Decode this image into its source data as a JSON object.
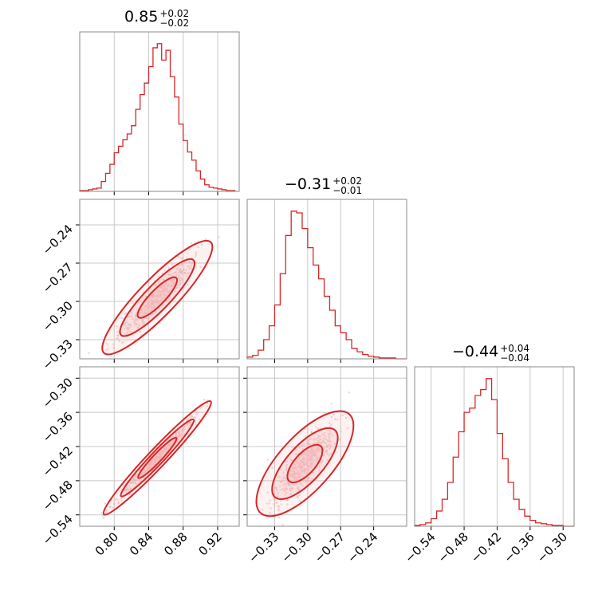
{
  "colors": {
    "accent": "#d62728",
    "fill": "#f3b7b8",
    "scatter": "#f4a9aa"
  },
  "titles": [
    {
      "main": "0.85",
      "plus": "+0.02",
      "minus": "−0.02"
    },
    {
      "main": "−0.31",
      "plus": "+0.02",
      "minus": "−0.01"
    },
    {
      "main": "−0.44",
      "plus": "+0.04",
      "minus": "−0.04"
    }
  ],
  "chart_data": [
    {
      "type": "histogram",
      "panel": "marginal-1",
      "xlim": [
        0.76,
        0.945
      ],
      "bins": [
        0.76,
        0.765,
        0.77,
        0.775,
        0.78,
        0.785,
        0.79,
        0.795,
        0.8,
        0.805,
        0.81,
        0.815,
        0.82,
        0.825,
        0.83,
        0.835,
        0.84,
        0.845,
        0.85,
        0.855,
        0.86,
        0.865,
        0.87,
        0.875,
        0.88,
        0.885,
        0.89,
        0.895,
        0.9,
        0.905,
        0.91,
        0.915,
        0.92,
        0.925,
        0.93,
        0.935,
        0.94
      ],
      "counts": [
        1,
        1,
        2,
        3,
        4,
        12,
        22,
        33,
        47,
        55,
        63,
        70,
        80,
        100,
        118,
        132,
        152,
        175,
        180,
        160,
        172,
        140,
        115,
        82,
        62,
        48,
        38,
        25,
        15,
        8,
        5,
        4,
        3,
        2,
        1,
        1
      ],
      "xticks": [
        0.8,
        0.84,
        0.88,
        0.92
      ]
    },
    {
      "type": "histogram",
      "panel": "marginal-2",
      "xlim": [
        -0.355,
        -0.21
      ],
      "bins": [
        -0.355,
        -0.35,
        -0.345,
        -0.34,
        -0.335,
        -0.33,
        -0.325,
        -0.32,
        -0.315,
        -0.31,
        -0.305,
        -0.3,
        -0.295,
        -0.29,
        -0.285,
        -0.28,
        -0.275,
        -0.27,
        -0.265,
        -0.26,
        -0.255,
        -0.25,
        -0.245,
        -0.24,
        -0.235,
        -0.23,
        -0.225,
        -0.22,
        -0.215,
        -0.21
      ],
      "counts": [
        2,
        4,
        10,
        22,
        38,
        62,
        98,
        142,
        170,
        168,
        150,
        128,
        108,
        92,
        72,
        56,
        38,
        30,
        22,
        12,
        8,
        5,
        3,
        2,
        1,
        1,
        1,
        0,
        0
      ],
      "xticks": [
        -0.33,
        -0.3,
        -0.27,
        -0.24
      ]
    },
    {
      "type": "histogram",
      "panel": "marginal-3",
      "xlim": [
        -0.57,
        -0.28
      ],
      "bins": [
        -0.57,
        -0.56,
        -0.55,
        -0.54,
        -0.53,
        -0.52,
        -0.51,
        -0.5,
        -0.49,
        -0.48,
        -0.47,
        -0.46,
        -0.45,
        -0.44,
        -0.43,
        -0.42,
        -0.41,
        -0.4,
        -0.39,
        -0.38,
        -0.37,
        -0.36,
        -0.35,
        -0.34,
        -0.33,
        -0.32,
        -0.31,
        -0.3,
        -0.29,
        -0.28
      ],
      "counts": [
        1,
        2,
        4,
        9,
        18,
        32,
        52,
        82,
        112,
        135,
        140,
        155,
        162,
        175,
        150,
        110,
        80,
        52,
        32,
        20,
        12,
        7,
        4,
        3,
        2,
        1,
        1,
        0,
        0
      ],
      "xticks": [
        -0.54,
        -0.48,
        -0.42,
        -0.36,
        -0.3
      ]
    },
    {
      "type": "scatter",
      "panel": "joint-2-1",
      "xlim": [
        0.76,
        0.945
      ],
      "ylim": [
        -0.345,
        -0.22
      ],
      "xticks": [
        0.8,
        0.84,
        0.88,
        0.92
      ],
      "yticks": [
        -0.24,
        -0.27,
        -0.3,
        -0.33
      ],
      "ytick_labels": [
        "−0.24",
        "−0.27",
        "−0.30",
        "−0.33"
      ],
      "trend": {
        "x": [
          0.8,
          0.9
        ],
        "y": [
          -0.332,
          -0.262
        ],
        "spread": 0.006
      }
    },
    {
      "type": "scatter",
      "panel": "joint-3-1",
      "xlim": [
        0.76,
        0.945
      ],
      "ylim": [
        -0.56,
        -0.28
      ],
      "xticks": [
        0.8,
        0.84,
        0.88,
        0.92
      ],
      "xtick_labels": [
        "0.80",
        "0.84",
        "0.88",
        "0.92"
      ],
      "yticks": [
        -0.3,
        -0.36,
        -0.42,
        -0.48,
        -0.54
      ],
      "ytick_labels": [
        "−0.30",
        "−0.36",
        "−0.42",
        "−0.48",
        "−0.54"
      ],
      "trend": {
        "x": [
          0.8,
          0.9
        ],
        "y": [
          -0.52,
          -0.36
        ],
        "spread": 0.006
      }
    },
    {
      "type": "scatter",
      "panel": "joint-3-2",
      "xlim": [
        -0.355,
        -0.21
      ],
      "ylim": [
        -0.56,
        -0.28
      ],
      "xticks": [
        -0.33,
        -0.3,
        -0.27,
        -0.24
      ],
      "xtick_labels": [
        "−0.33",
        "−0.30",
        "−0.27",
        "−0.24"
      ],
      "yticks": [
        -0.3,
        -0.36,
        -0.42,
        -0.48,
        -0.54
      ],
      "trend": {
        "x": [
          -0.335,
          -0.27
        ],
        "y": [
          -0.52,
          -0.38
        ],
        "spread": 0.02
      }
    },
    {
      "type": "histogram-axis",
      "panel": "marginal-3-axis",
      "xticks": [
        -0.54,
        -0.48,
        -0.42,
        -0.36,
        -0.3
      ],
      "xtick_labels": [
        "−0.54",
        "−0.48",
        "−0.42",
        "−0.36",
        "−0.30"
      ]
    }
  ]
}
